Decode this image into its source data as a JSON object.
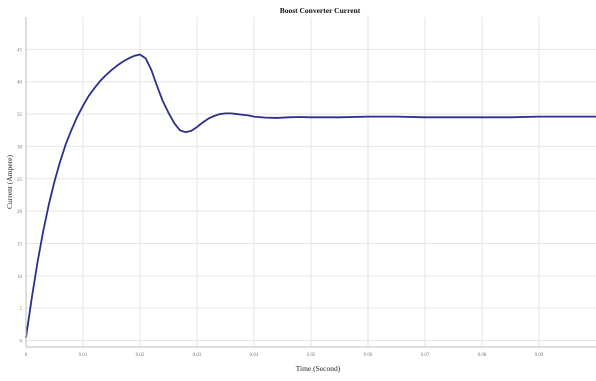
{
  "chart_data": {
    "type": "line",
    "title": "Boost Converter Current",
    "xlabel": "Time (Second)",
    "ylabel": "Current (Ampere)",
    "xlim": [
      0,
      0.1
    ],
    "ylim": [
      -1,
      50
    ],
    "grid": true,
    "x_ticks": [
      0,
      0.01,
      0.02,
      0.03,
      0.04,
      0.05,
      0.06,
      0.07,
      0.08,
      0.09
    ],
    "x_tick_labels": [
      "0",
      "0.01",
      "0.02",
      "0.03",
      "0.04",
      "0.05",
      "0.06",
      "0.07",
      "0.08",
      "0.09"
    ],
    "y_ticks": [
      0,
      5,
      10,
      15,
      20,
      25,
      30,
      35,
      40,
      45
    ],
    "y_tick_labels": [
      "0",
      "5",
      "10",
      "15",
      "20",
      "25",
      "30",
      "35",
      "40",
      "45"
    ],
    "series": [
      {
        "color": "#2b2f8f",
        "x": [
          0,
          0.001,
          0.002,
          0.003,
          0.004,
          0.005,
          0.006,
          0.007,
          0.008,
          0.009,
          0.01,
          0.011,
          0.012,
          0.013,
          0.014,
          0.015,
          0.016,
          0.017,
          0.018,
          0.019,
          0.02,
          0.021,
          0.022,
          0.023,
          0.024,
          0.025,
          0.026,
          0.027,
          0.028,
          0.029,
          0.03,
          0.031,
          0.032,
          0.033,
          0.034,
          0.035,
          0.036,
          0.037,
          0.038,
          0.039,
          0.04,
          0.042,
          0.044,
          0.046,
          0.048,
          0.05,
          0.055,
          0.06,
          0.065,
          0.07,
          0.075,
          0.08,
          0.085,
          0.09,
          0.095,
          0.1
        ],
        "y": [
          0.5,
          6.5,
          12.0,
          16.8,
          21.0,
          24.6,
          27.7,
          30.4,
          32.6,
          34.6,
          36.3,
          37.8,
          39.0,
          40.1,
          41.0,
          41.8,
          42.5,
          43.1,
          43.6,
          44.0,
          44.2,
          43.6,
          41.8,
          39.3,
          37.0,
          35.2,
          33.6,
          32.5,
          32.2,
          32.4,
          33.0,
          33.7,
          34.3,
          34.7,
          35.0,
          35.1,
          35.1,
          35.0,
          34.9,
          34.8,
          34.6,
          34.45,
          34.4,
          34.5,
          34.55,
          34.5,
          34.5,
          34.6,
          34.6,
          34.5,
          34.5,
          34.5,
          34.5,
          34.6,
          34.6,
          34.6
        ]
      }
    ]
  }
}
